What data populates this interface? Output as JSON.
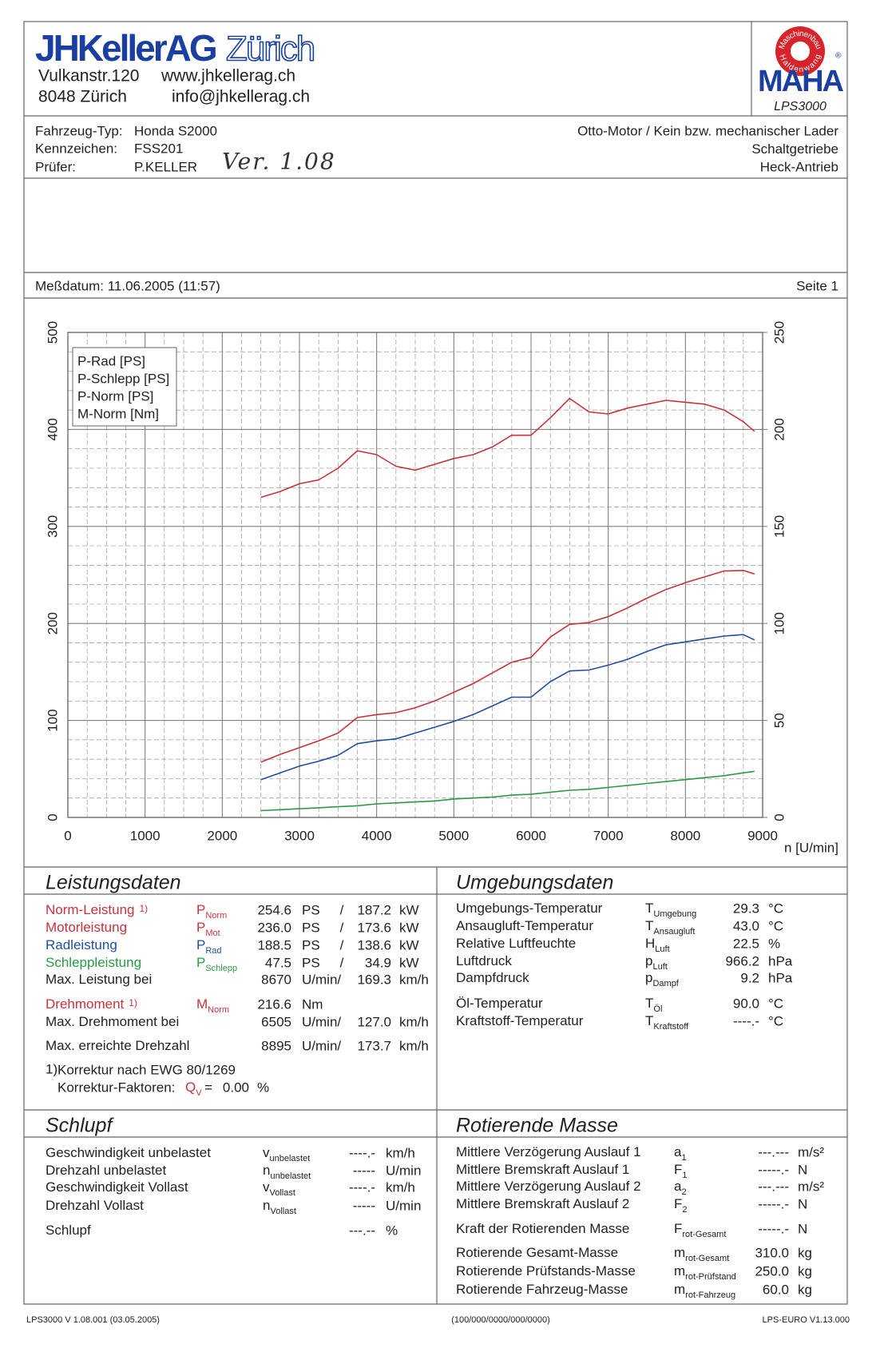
{
  "header": {
    "company": "JHKellerAG",
    "city": "Zürich",
    "street": "Vulkanstr.120",
    "web": "www.jhkellerag.ch",
    "zip_city": "8048 Zürich",
    "email": "info@jhkellerag.ch",
    "logo_ring_top": "Maschinenbau",
    "logo_ring_bottom": "Haldenwang",
    "logo": "MAHA",
    "logo_mark": "®",
    "model": "LPS3000"
  },
  "vehicle": {
    "fields": [
      {
        "label": "Fahrzeug-Typ:",
        "value": "Honda S2000"
      },
      {
        "label": "Kennzeichen:",
        "value": "FSS201"
      },
      {
        "label": "Prüfer:",
        "value": "P.KELLER"
      }
    ],
    "handwritten": "Ver. 1.08",
    "specs": [
      "Otto-Motor / Kein bzw. mechanischer Lader",
      "Schaltgetriebe",
      "Heck-Antrieb"
    ]
  },
  "measurement": {
    "date": "Meßdatum: 11.06.2005 (11:57)",
    "page": "Seite 1"
  },
  "chart_data": {
    "type": "line",
    "x": [
      2500,
      2750,
      3000,
      3250,
      3500,
      3750,
      4000,
      4250,
      4500,
      4750,
      5000,
      5250,
      5500,
      5750,
      6000,
      6250,
      6500,
      6750,
      7000,
      7250,
      7500,
      7750,
      8000,
      8250,
      8500,
      8750,
      8895
    ],
    "series": [
      {
        "name": "P-Rad [PS]",
        "color": "#1f4f9e",
        "values": [
          39,
          46,
          53,
          58,
          64,
          76,
          79,
          81,
          87,
          93,
          99,
          106,
          115,
          124,
          124,
          140,
          151,
          152,
          157,
          163,
          171,
          178,
          181,
          184,
          187,
          188.5,
          183
        ]
      },
      {
        "name": "P-Schlepp [PS]",
        "color": "#2a9a46",
        "values": [
          7,
          8,
          9,
          10,
          11,
          12,
          14,
          15,
          16,
          17,
          19,
          20,
          21,
          23,
          24,
          26,
          28,
          29,
          31,
          33,
          35,
          37,
          39,
          41,
          43,
          46,
          47.5
        ]
      },
      {
        "name": "P-Norm [PS]",
        "color": "#c8323a",
        "values": [
          57,
          65,
          72,
          79,
          87,
          103,
          106,
          108,
          113,
          120,
          129,
          138,
          149,
          160,
          165,
          186,
          199,
          201,
          207,
          216,
          226,
          235,
          242,
          248,
          254,
          254.6,
          251
        ]
      },
      {
        "name": "M-Norm [Nm]",
        "color": "#c8323a",
        "axis": "y2",
        "values": [
          165,
          168,
          172,
          174,
          180,
          189,
          187,
          181,
          179,
          182,
          185,
          187,
          191,
          197,
          197,
          206,
          216,
          209,
          208,
          211,
          213,
          215,
          214,
          213,
          210,
          204,
          199
        ]
      }
    ],
    "xlabel": "n [U/min]",
    "xlim": [
      0,
      9000
    ],
    "xticks": [
      0,
      1000,
      2000,
      3000,
      4000,
      5000,
      6000,
      7000,
      8000,
      9000
    ],
    "ylim": [
      0,
      500
    ],
    "yticks": [
      0,
      100,
      200,
      300,
      400,
      500
    ],
    "y2lim": [
      0,
      250
    ],
    "y2ticks": [
      0,
      50,
      100,
      150,
      200,
      250
    ],
    "grid": true,
    "legend": "upper left"
  },
  "performance": {
    "title": "Leistungsdaten",
    "rows": [
      {
        "label": "Norm-Leistung",
        "note": "1)",
        "symbol": {
          "main": "P",
          "sub": "Norm"
        },
        "value": "254.6",
        "unit": "PS",
        "sep": "/",
        "value2": "187.2",
        "unit2": "kW",
        "color": "#c8323a"
      },
      {
        "label": "Motorleistung",
        "symbol": {
          "main": "P",
          "sub": "Mot"
        },
        "value": "236.0",
        "unit": "PS",
        "sep": "/",
        "value2": "173.6",
        "unit2": "kW",
        "color": "#c8323a"
      },
      {
        "label": "Radleistung",
        "symbol": {
          "main": "P",
          "sub": "Rad"
        },
        "value": "188.5",
        "unit": "PS",
        "sep": "/",
        "value2": "138.6",
        "unit2": "kW",
        "color": "#1f4f9e"
      },
      {
        "label": "Schleppleistung",
        "symbol": {
          "main": "P",
          "sub": "Schlepp"
        },
        "value": "47.5",
        "unit": "PS",
        "sep": "/",
        "value2": "34.9",
        "unit2": "kW",
        "color": "#2a9a46"
      },
      {
        "label": "Max. Leistung bei",
        "value": "8670",
        "unit": "U/min/",
        "value2": "169.3",
        "unit2": "km/h"
      },
      {
        "label": "Drehmoment",
        "note": "1)",
        "symbol": {
          "main": "M",
          "sub": "Norm"
        },
        "value": "216.6",
        "unit": "Nm",
        "color": "#c8323a"
      },
      {
        "label": "Max. Drehmoment bei",
        "value": "6505",
        "unit": "U/min/",
        "value2": "127.0",
        "unit2": "km/h"
      },
      {
        "label": "Max. erreichte Drehzahl",
        "value": "8895",
        "unit": "U/min/",
        "value2": "173.7",
        "unit2": "km/h"
      }
    ],
    "footnote": {
      "note": "1)",
      "text": "Korrektur nach EWG 80/1269"
    },
    "correction": {
      "label": "Korrektur-Faktoren:",
      "symbol": {
        "main": "Q",
        "sub": "V"
      },
      "eq": "=",
      "value": "0.00",
      "unit": "%"
    }
  },
  "environment": {
    "title": "Umgebungsdaten",
    "rows": [
      {
        "label": "Umgebungs-Temperatur",
        "symbol": {
          "main": "T",
          "sub": "Umgebung"
        },
        "value": "29.3",
        "unit": "°C"
      },
      {
        "label": "Ansaugluft-Temperatur",
        "symbol": {
          "main": "T",
          "sub": "Ansaugluft"
        },
        "value": "43.0",
        "unit": "°C"
      },
      {
        "label": "Relative Luftfeuchte",
        "symbol": {
          "main": "H",
          "sub": "Luft"
        },
        "value": "22.5",
        "unit": "%"
      },
      {
        "label": "Luftdruck",
        "symbol": {
          "main": "p",
          "sub": "Luft"
        },
        "value": "966.2",
        "unit": "hPa"
      },
      {
        "label": "Dampfdruck",
        "symbol": {
          "main": "p",
          "sub": "Dampf"
        },
        "value": "9.2",
        "unit": "hPa"
      },
      {
        "label": "Öl-Temperatur",
        "symbol": {
          "main": "T",
          "sub": "Öl"
        },
        "value": "90.0",
        "unit": "°C"
      },
      {
        "label": "Kraftstoff-Temperatur",
        "symbol": {
          "main": "T",
          "sub": "Kraftstoff"
        },
        "value": "----.-",
        "unit": "°C"
      }
    ]
  },
  "slip": {
    "title": "Schlupf",
    "rows": [
      {
        "label": "Geschwindigkeit unbelastet",
        "symbol": {
          "main": "v",
          "sub": "unbelastet"
        },
        "value": "----.-",
        "unit": "km/h"
      },
      {
        "label": "Drehzahl unbelastet",
        "symbol": {
          "main": "n",
          "sub": "unbelastet"
        },
        "value": "-----",
        "unit": "U/min"
      },
      {
        "label": "Geschwindigkeit Vollast",
        "symbol": {
          "main": "v",
          "sub": "Vollast"
        },
        "value": "----.-",
        "unit": "km/h"
      },
      {
        "label": "Drehzahl Vollast",
        "symbol": {
          "main": "n",
          "sub": "Vollast"
        },
        "value": "-----",
        "unit": "U/min"
      },
      {
        "label": "Schlupf",
        "value": "---.--",
        "unit": "%"
      }
    ]
  },
  "rotating_mass": {
    "title": "Rotierende Masse",
    "rows": [
      {
        "label": "Mittlere Verzögerung Auslauf 1",
        "symbol": {
          "main": "a",
          "sub": "1"
        },
        "value": "---.---",
        "unit": "m/s²"
      },
      {
        "label": "Mittlere Bremskraft Auslauf 1",
        "symbol": {
          "main": "F",
          "sub": "1"
        },
        "value": "-----.-",
        "unit": "N"
      },
      {
        "label": "Mittlere Verzögerung Auslauf 2",
        "symbol": {
          "main": "a",
          "sub": "2"
        },
        "value": "---.---",
        "unit": "m/s²"
      },
      {
        "label": "Mittlere Bremskraft Auslauf 2",
        "symbol": {
          "main": "F",
          "sub": "2"
        },
        "value": "-----.-",
        "unit": "N"
      },
      {
        "label": "Kraft der Rotierenden Masse",
        "symbol": {
          "main": "F",
          "sub": "rot-Gesamt"
        },
        "value": "-----.-",
        "unit": "N"
      },
      {
        "label": "Rotierende Gesamt-Masse",
        "symbol": {
          "main": "m",
          "sub": "rot-Gesamt"
        },
        "value": "310.0",
        "unit": "kg"
      },
      {
        "label": "Rotierende Prüfstands-Masse",
        "symbol": {
          "main": "m",
          "sub": "rot-Prüfstand"
        },
        "value": "250.0",
        "unit": "kg"
      },
      {
        "label": "Rotierende Fahrzeug-Masse",
        "symbol": {
          "main": "m",
          "sub": "rot-Fahrzeug"
        },
        "value": "60.0",
        "unit": "kg"
      }
    ]
  },
  "footer": {
    "left": "LPS3000 V 1.08.001 (03.05.2005)",
    "center": "(100/000/0000/000/0000)",
    "right": "LPS-EURO V1.13.000"
  }
}
